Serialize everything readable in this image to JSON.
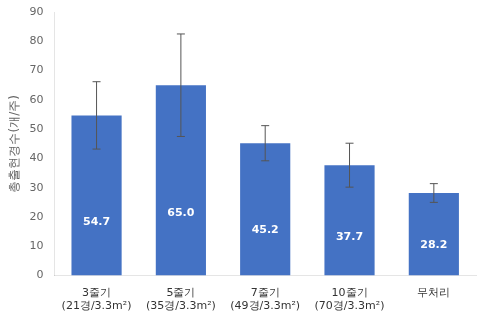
{
  "chart_data": {
    "type": "bar",
    "ylabel": "총출현경수(개/주)",
    "categories": [
      "3줄기\n(21경/3.3m²)",
      "5줄기\n(35경/3.3m²)",
      "7줄기\n(49경/3.3m²)",
      "10줄기\n(70경/3.3m²)",
      "무처리"
    ],
    "values": [
      54.7,
      65.0,
      45.2,
      37.7,
      28.2
    ],
    "errors": [
      11.5,
      17.5,
      6.0,
      7.5,
      3.2
    ],
    "value_labels": [
      "54.7",
      "65.0",
      "45.2",
      "37.7",
      "28.2"
    ],
    "data_labels": true,
    "color": "#4472C4",
    "ylim": [
      0,
      90
    ],
    "yticks": [
      0,
      10,
      20,
      30,
      40,
      50,
      60,
      70,
      80,
      90
    ],
    "grid": false,
    "legend": false
  }
}
